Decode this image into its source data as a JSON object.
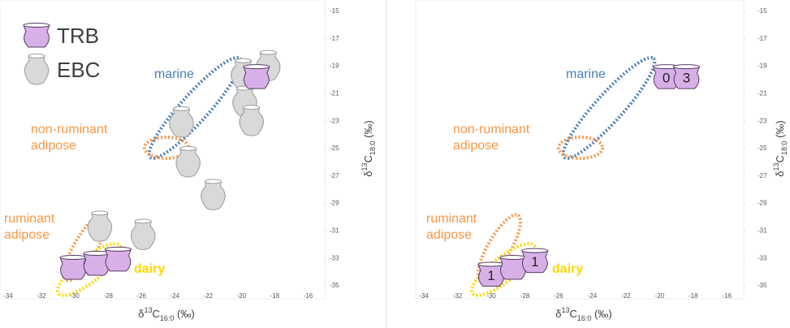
{
  "chart_data": [
    {
      "type": "scatter",
      "legend": "top-left",
      "xlim": [
        -34,
        -15
      ],
      "xticks": [
        -34,
        -32,
        -30,
        -28,
        -26,
        -24,
        -22,
        -20,
        -18,
        -16
      ],
      "ylim": [
        -35,
        -15
      ],
      "yticks": [
        -15,
        -17,
        -19,
        -21,
        -23,
        -25,
        -27,
        -29,
        -31,
        -33,
        -35
      ],
      "xlabel": [
        "δ",
        "13",
        "C",
        "16:0",
        " (‰)"
      ],
      "ylabel": [
        "δ",
        "13",
        "C",
        "18:0",
        " (‰)"
      ],
      "series": [
        {
          "name": "EBC",
          "color": "#d9d9d9",
          "x": [
            -18.4,
            -19.9,
            -19.8,
            -19.4,
            -23.6,
            -23.2,
            -21.7,
            -28.5,
            -25.9
          ],
          "y": [
            -19.0,
            -19.6,
            -21.6,
            -23.0,
            -23.1,
            -26.0,
            -28.4,
            -30.7,
            -31.3
          ]
        },
        {
          "name": "TRB",
          "color": "#d8b0e8",
          "x": [
            -19.1,
            -30.1,
            -28.7,
            -27.4
          ],
          "y": [
            -19.8,
            -33.7,
            -33.4,
            -33.1
          ]
        }
      ],
      "annotations": [
        {
          "text": "marine",
          "color": "#4a7ebb"
        },
        {
          "text": "non-ruminant adipose",
          "color": "#f79646"
        },
        {
          "text": "ruminant adipose",
          "color": "#f79646"
        },
        {
          "text": "dairy",
          "color": "#ffd700"
        }
      ]
    },
    {
      "type": "scatter",
      "xlim": [
        -34,
        -15
      ],
      "xticks": [
        -34,
        -32,
        -30,
        -28,
        -26,
        -24,
        -22,
        -20,
        -18,
        -16
      ],
      "ylim": [
        -35,
        -15
      ],
      "yticks": [
        -15,
        -17,
        -19,
        -21,
        -23,
        -25,
        -27,
        -29,
        -31,
        -33,
        -35
      ],
      "xlabel": [
        "δ",
        "13",
        "C",
        "16:0",
        " (‰)"
      ],
      "ylabel": [
        "δ",
        "13",
        "C",
        "18:0",
        " (‰)"
      ],
      "series": [
        {
          "color": "#d8b0e8",
          "x": [
            -19.6,
            -18.4,
            -30.0,
            -28.7,
            -27.4
          ],
          "y": [
            -19.8,
            -19.8,
            -34.2,
            -33.7,
            -33.2
          ],
          "point_labels": [
            "0",
            "3",
            "1",
            null,
            "1"
          ]
        }
      ],
      "annotations": [
        {
          "text": "marine",
          "color": "#4a7ebb"
        },
        {
          "text": "non-ruminant adipose",
          "color": "#f79646"
        },
        {
          "text": "ruminant adipose",
          "color": "#f79646"
        },
        {
          "text": "dairy",
          "color": "#ffd700"
        }
      ]
    }
  ]
}
